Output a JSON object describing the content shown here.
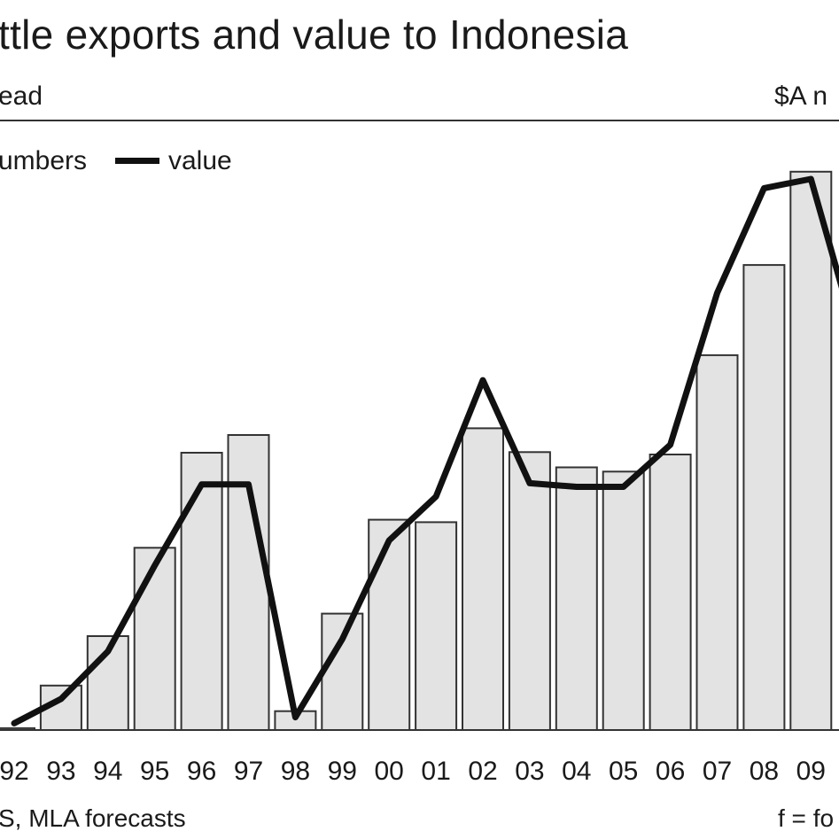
{
  "header": {
    "title": "ttle exports and value to Indonesia",
    "unit_left": "ead",
    "unit_right": "$A n"
  },
  "legend": {
    "numbers_label": "umbers",
    "value_label": "value"
  },
  "footer": {
    "source": "S, MLA forecasts",
    "note": "f = fo"
  },
  "colors": {
    "bar_fill": "#e3e3e3",
    "bar_stroke": "#333333",
    "line": "#111111",
    "axis": "#333333"
  },
  "chart_data": {
    "type": "bar",
    "categories": [
      "92",
      "93",
      "94",
      "95",
      "96",
      "97",
      "98",
      "99",
      "00",
      "01",
      "02",
      "03",
      "04",
      "05",
      "06",
      "07",
      "08",
      "09"
    ],
    "series": [
      {
        "name": "numbers",
        "type": "bar",
        "values": [
          0.3,
          7.3,
          15.4,
          29.9,
          45.5,
          48.4,
          3.1,
          19.1,
          34.5,
          34.1,
          49.5,
          45.6,
          43.1,
          42.4,
          45.2,
          61.5,
          76.3,
          91.6
        ]
      },
      {
        "name": "value",
        "type": "line",
        "values": [
          1.1,
          5.1,
          12.9,
          27.0,
          40.3,
          40.3,
          2.1,
          14.9,
          31.1,
          38.3,
          57.4,
          40.5,
          39.9,
          39.9,
          46.8,
          71.7,
          88.9,
          90.4
        ]
      }
    ],
    "ylim": [
      0,
      100
    ],
    "xlabel": "",
    "ylabel": "",
    "grid": false
  }
}
